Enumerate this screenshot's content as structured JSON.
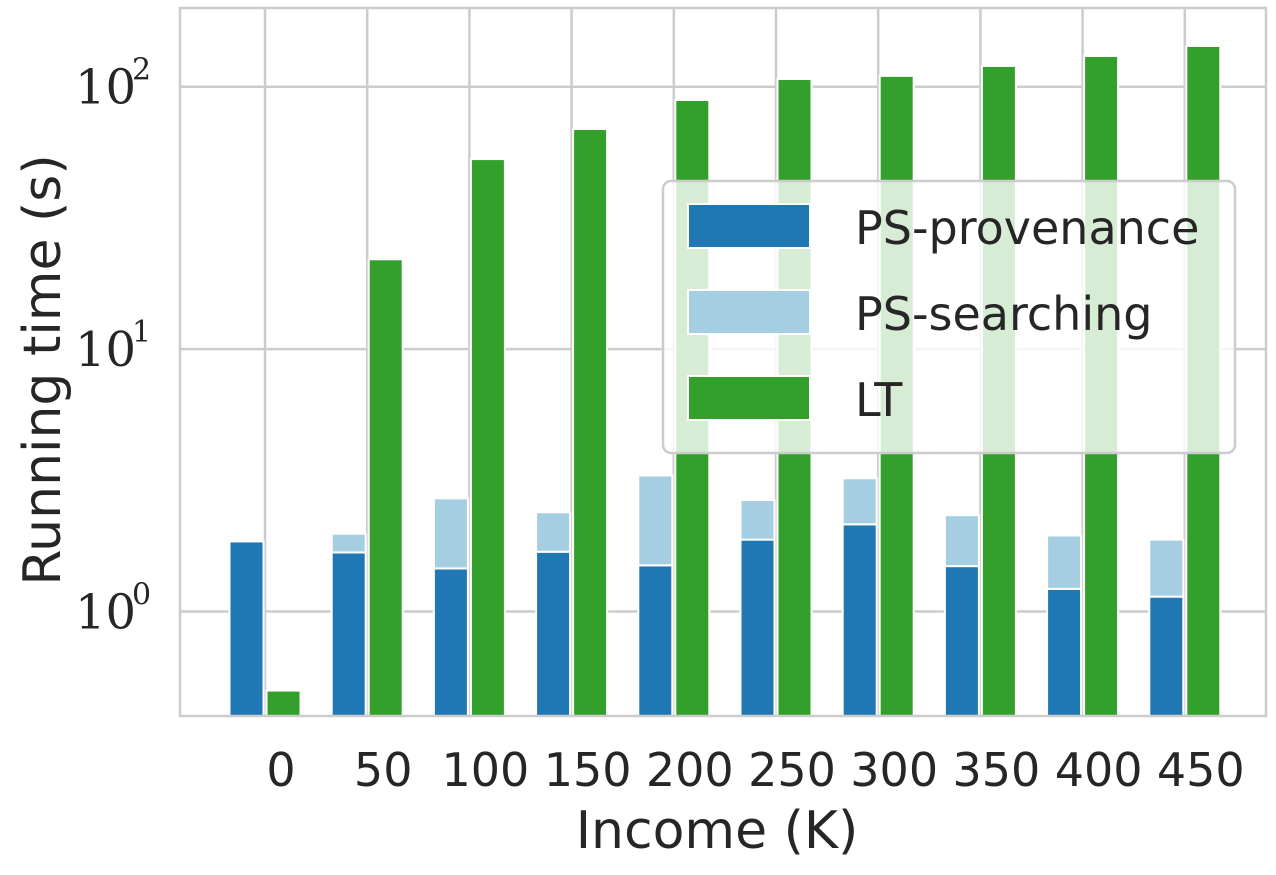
{
  "chart_data": {
    "type": "bar",
    "title": "",
    "xlabel": "Income (K)",
    "ylabel": "Running time (s)",
    "yscale": "log",
    "ylim": [
      0.4,
      200
    ],
    "yticks": [
      {
        "base": "10",
        "exp": "0",
        "value": 1
      },
      {
        "base": "10",
        "exp": "1",
        "value": 10
      },
      {
        "base": "10",
        "exp": "2",
        "value": 100
      }
    ],
    "grid": true,
    "legend_position": "right",
    "categories": [
      "0",
      "50",
      "100",
      "150",
      "200",
      "250",
      "300",
      "350",
      "400",
      "450"
    ],
    "series": [
      {
        "name": "PS-provenance",
        "color": "#1f77b4",
        "values": [
          1.85,
          1.68,
          1.46,
          1.69,
          1.5,
          1.88,
          2.15,
          1.49,
          1.22,
          1.14
        ]
      },
      {
        "name": "PS-searching",
        "color": "#a6cee3",
        "stacked_on": "PS-provenance",
        "values": [
          0,
          0.3,
          1.24,
          0.7,
          1.8,
          0.78,
          1.07,
          0.84,
          0.73,
          0.74
        ]
      },
      {
        "name": "LT",
        "color": "#33a02c",
        "values": [
          0.5,
          22,
          53,
          69,
          89,
          107,
          110,
          120,
          131,
          143
        ]
      }
    ]
  }
}
